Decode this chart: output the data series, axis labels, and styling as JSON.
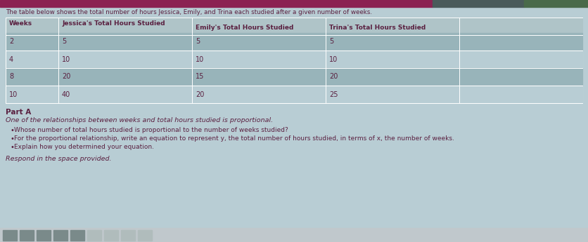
{
  "title": "The table below shows the total number of hours Jessica, Emily, and Trina each studied after a given number of weeks.",
  "body_bg": "#b8cdd4",
  "table_outer_bg": "#c8d8dc",
  "header_bg": "#afc4c8",
  "row_bg_odd": "#98b4ba",
  "row_bg_even": "#b8cdd4",
  "text_color": "#5a2040",
  "col_headers": [
    "Weeks",
    "Jessica's Total Hours Studied",
    "Emily's Total Hours Studied",
    "Trina's Total Hours Studied"
  ],
  "weeks": [
    2,
    4,
    8,
    10
  ],
  "jessica": [
    5,
    10,
    20,
    40
  ],
  "emily": [
    5,
    10,
    15,
    20
  ],
  "trina": [
    5,
    10,
    20,
    25
  ],
  "part_a_title": "Part A",
  "part_a_intro": "One of the relationships between weeks and total hours studied is proportional.",
  "bullets": [
    "Whose number of total hours studied is proportional to the number of weeks studied?",
    "For the proportional relationship, write an equation to represent y, the total number of hours studied, in terms of x, the number of weeks.",
    "Explain how you determined your equation."
  ],
  "respond_text": "Respond in the space provided.",
  "top_red_color": "#8B2252",
  "top_dark_color": "#4a5a5a",
  "top_green_color": "#4a6a4a",
  "line_color": "#ffffff",
  "toolbar_bg": "#c0c8cc",
  "btn_dark": "#7a8a8a",
  "btn_light": "#b0bcbc"
}
